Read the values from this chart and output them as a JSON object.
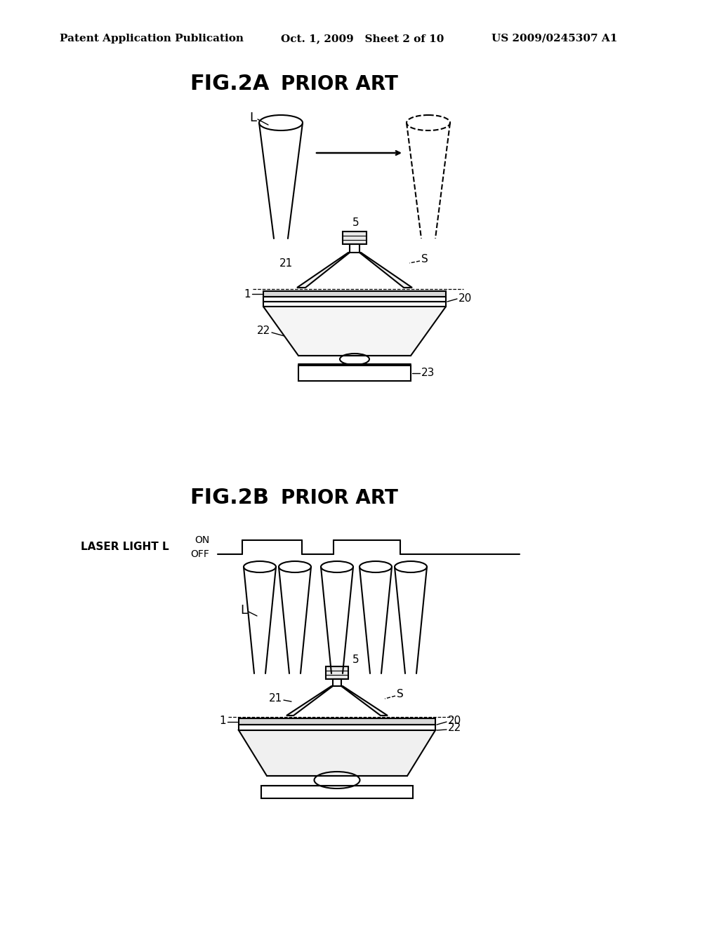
{
  "bg_color": "#ffffff",
  "line_color": "#000000",
  "header_left": "Patent Application Publication",
  "header_mid": "Oct. 1, 2009   Sheet 2 of 10",
  "header_right": "US 2009/0245307 A1",
  "fig2a_title": "FIG.2A",
  "fig2a_subtitle": "PRIOR ART",
  "fig2b_title": "FIG.2B",
  "fig2b_subtitle": "PRIOR ART",
  "label_L": "L",
  "label_1": "1",
  "label_5": "5",
  "label_S": "S",
  "label_20": "20",
  "label_21": "21",
  "label_22": "22",
  "label_23": "23",
  "label_ON": "ON",
  "label_OFF": "OFF",
  "label_laser": "LASER LIGHT L",
  "label_L2": "L"
}
